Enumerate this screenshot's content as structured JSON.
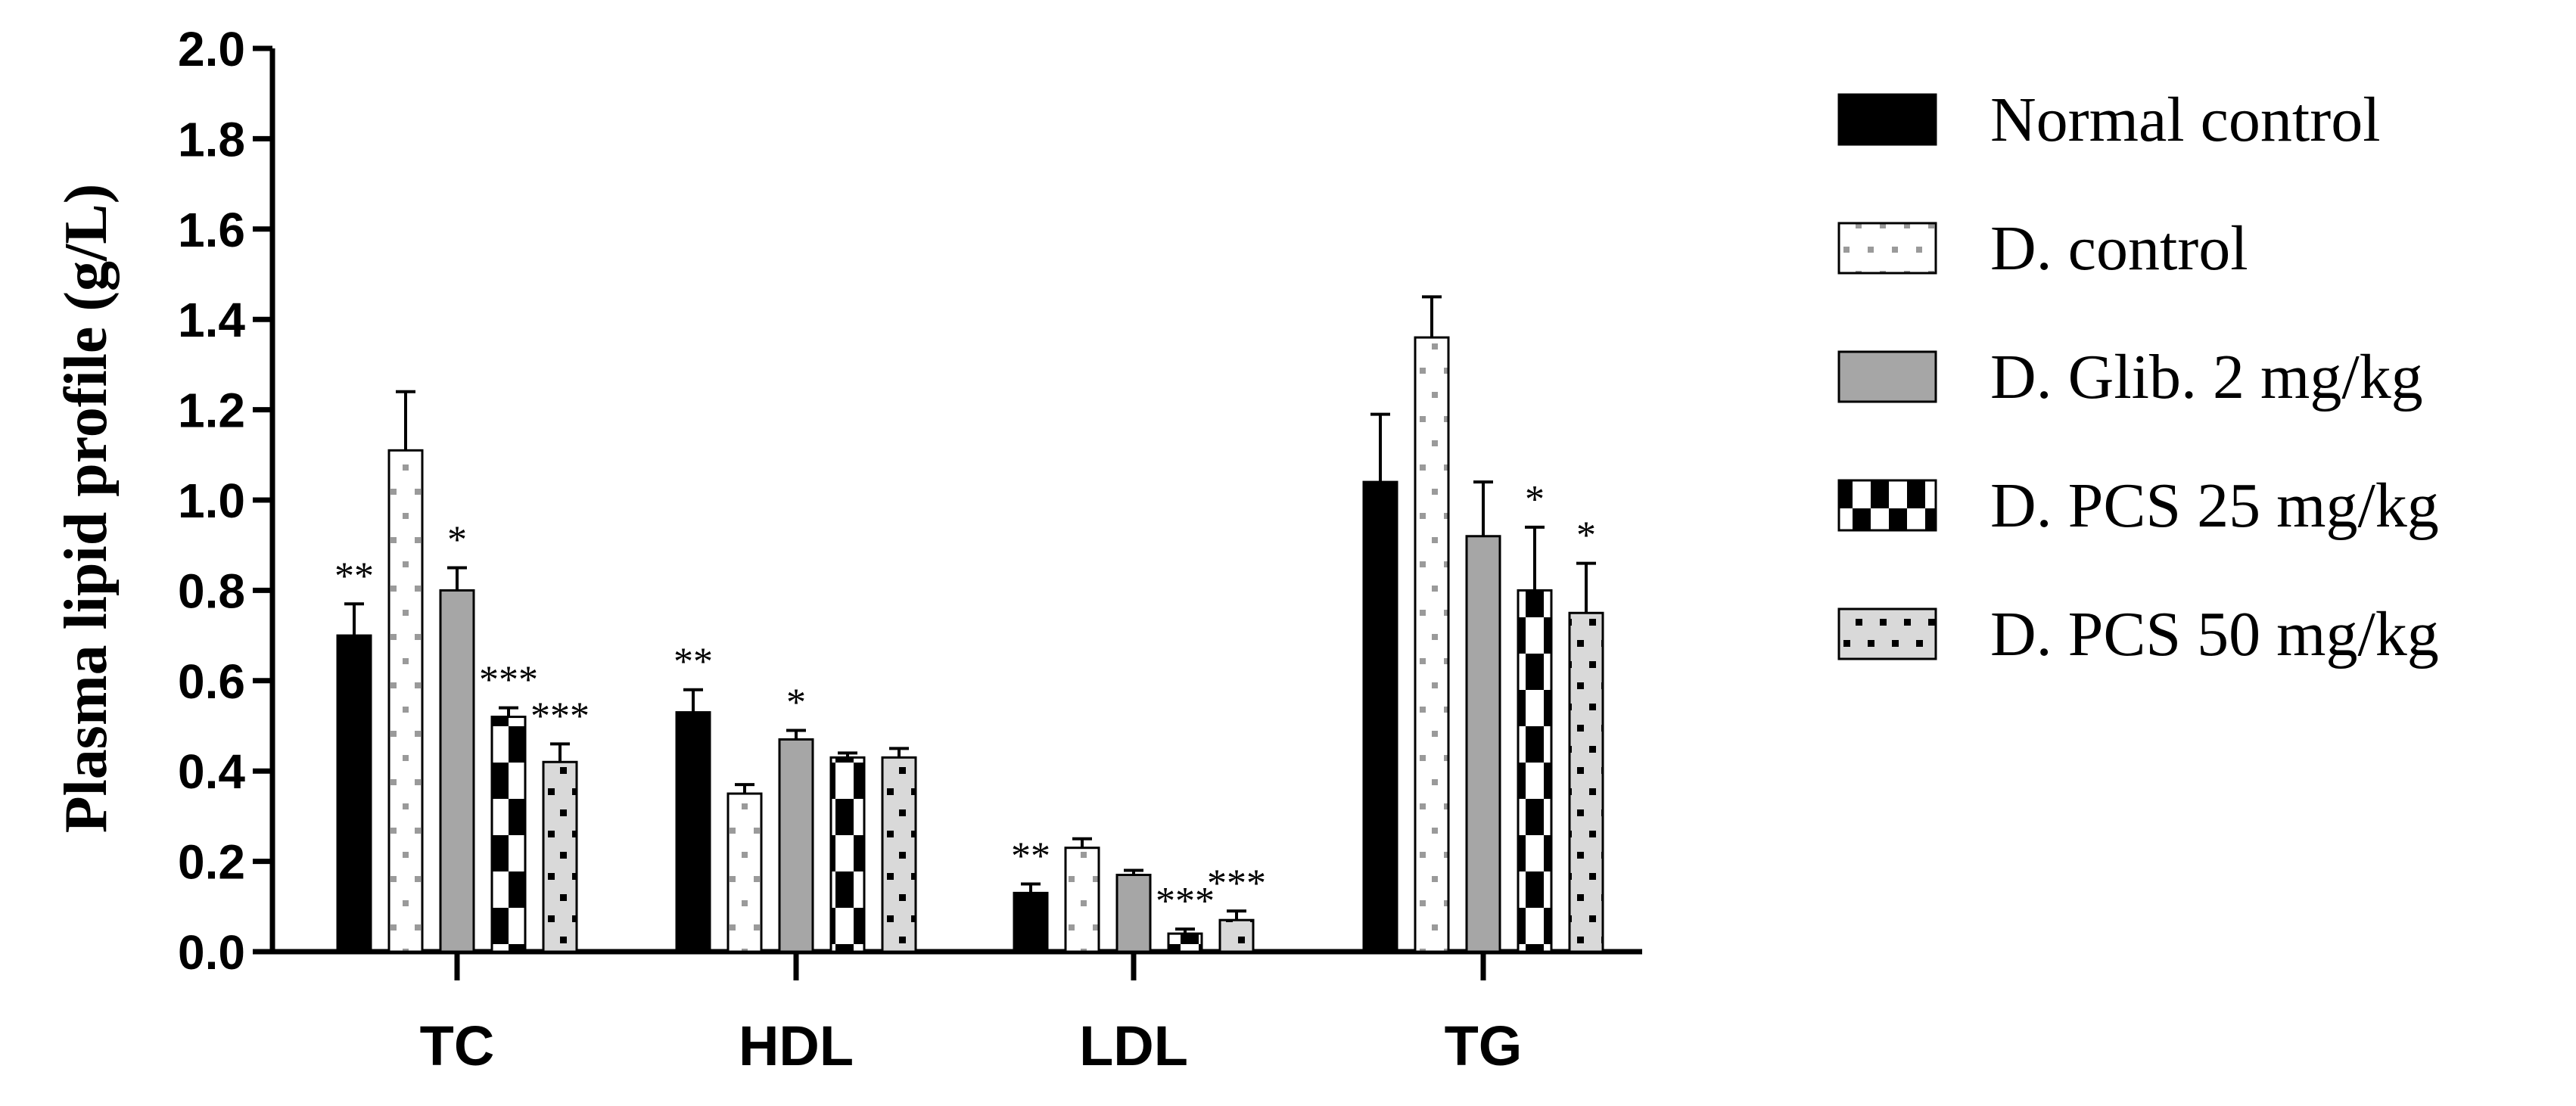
{
  "chart_data": {
    "type": "bar",
    "ylabel": "Plasma lipid profile (g/L)",
    "xlabel": "",
    "ylim": [
      0,
      2.0
    ],
    "yticks": [
      "0.0",
      "0.2",
      "0.4",
      "0.6",
      "0.8",
      "1.0",
      "1.2",
      "1.4",
      "1.6",
      "1.8",
      "2.0"
    ],
    "categories": [
      "TC",
      "HDL",
      "LDL",
      "TG"
    ],
    "legend_position": "right",
    "grid": false,
    "series": [
      {
        "name": "Normal control",
        "pattern": "solid-black",
        "values": [
          0.7,
          0.53,
          0.13,
          1.04
        ],
        "errors": [
          0.07,
          0.05,
          0.02,
          0.15
        ],
        "annotations": [
          "**",
          "**",
          "**",
          ""
        ]
      },
      {
        "name": "D. control",
        "pattern": "dotted-white",
        "values": [
          1.11,
          0.35,
          0.23,
          1.36
        ],
        "errors": [
          0.13,
          0.02,
          0.02,
          0.09
        ],
        "annotations": [
          "",
          "",
          "",
          ""
        ]
      },
      {
        "name": "D. Glib. 2 mg/kg",
        "pattern": "solid-gray",
        "values": [
          0.8,
          0.47,
          0.17,
          0.92
        ],
        "errors": [
          0.05,
          0.02,
          0.01,
          0.12
        ],
        "annotations": [
          "*",
          "*",
          "",
          ""
        ]
      },
      {
        "name": "D. PCS 25 mg/kg",
        "pattern": "checker",
        "values": [
          0.52,
          0.43,
          0.04,
          0.8
        ],
        "errors": [
          0.02,
          0.01,
          0.01,
          0.14
        ],
        "annotations": [
          "***",
          "",
          "***",
          "*"
        ]
      },
      {
        "name": "D. PCS 50 mg/kg",
        "pattern": "dotted-gray",
        "values": [
          0.42,
          0.43,
          0.07,
          0.75
        ],
        "errors": [
          0.04,
          0.02,
          0.02,
          0.11
        ],
        "annotations": [
          "***",
          "",
          "***",
          "*"
        ]
      }
    ],
    "colors": {
      "black": "#000000",
      "gray": "#a6a6a6",
      "light_gray": "#d9d9d9",
      "dot_gray": "#9a9a9a"
    }
  }
}
